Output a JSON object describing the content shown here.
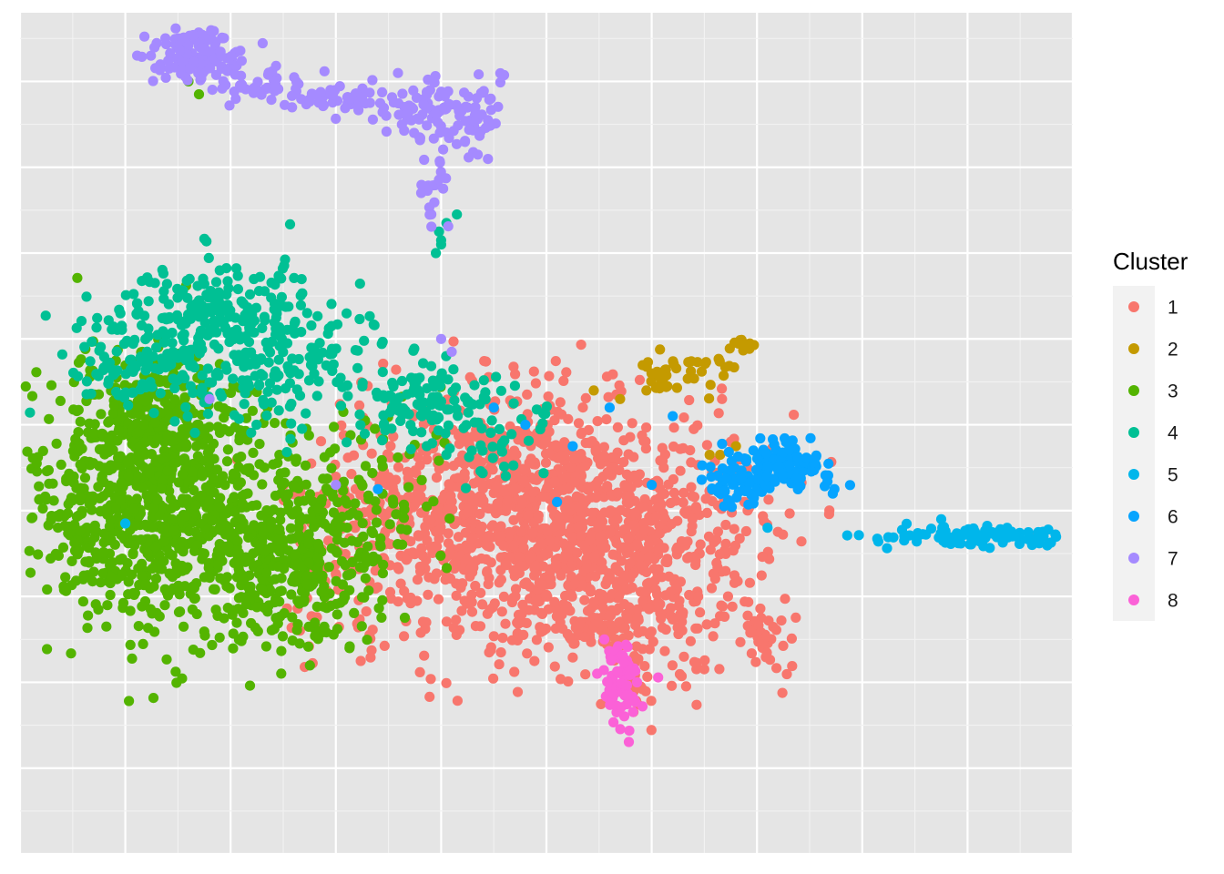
{
  "chart_data": {
    "type": "scatter",
    "title": "",
    "xlabel": "",
    "ylabel": "",
    "xlim": [
      -2,
      8
    ],
    "ylim": [
      -2,
      7.8
    ],
    "grid": true,
    "axis_tick_labels_shown": false,
    "legend": {
      "title": "Cluster",
      "placement": "right"
    },
    "colors": {
      "panel_background": "#e5e5e5",
      "grid_major": "#ffffff",
      "grid_minor": "#f2f2f2",
      "legend_key_background": "#f2f2f2"
    },
    "series": [
      {
        "name": "1",
        "color": "#f8766d",
        "clusters": [
          {
            "cx": 3.5,
            "cy": 1.6,
            "sx": 0.75,
            "sy": 0.75,
            "n": 900
          },
          {
            "cx": 2.1,
            "cy": 1.9,
            "sx": 0.65,
            "sy": 0.65,
            "n": 480
          },
          {
            "cx": 2.9,
            "cy": 2.5,
            "sx": 0.5,
            "sy": 0.45,
            "n": 160
          },
          {
            "cx": 1.1,
            "cy": 1.4,
            "sx": 0.4,
            "sy": 0.55,
            "n": 60
          },
          {
            "cx": 3.7,
            "cy": 0.45,
            "sx": 0.3,
            "sy": 0.4,
            "n": 60
          },
          {
            "cx": 5.05,
            "cy": 0.55,
            "sx": 0.12,
            "sy": 0.2,
            "n": 30
          }
        ],
        "points": [
          [
            7.4,
            1.75
          ],
          [
            7.6,
            1.7
          ],
          [
            4.75,
            2.8
          ],
          [
            4.4,
            2.95
          ]
        ]
      },
      {
        "name": "2",
        "color": "#c49a00",
        "clusters": [
          {
            "cx": 4.1,
            "cy": 3.6,
            "sx": 0.1,
            "sy": 0.1,
            "n": 28
          },
          {
            "cx": 4.55,
            "cy": 3.65,
            "sx": 0.18,
            "sy": 0.12,
            "n": 18
          },
          {
            "cx": 4.85,
            "cy": 3.95,
            "sx": 0.08,
            "sy": 0.06,
            "n": 12
          }
        ],
        "points": [
          [
            3.45,
            3.4
          ],
          [
            3.7,
            3.3
          ],
          [
            3.95,
            3.4
          ],
          [
            4.55,
            2.65
          ],
          [
            4.8,
            2.75
          ],
          [
            4.65,
            2.65
          ]
        ]
      },
      {
        "name": "3",
        "color": "#53b400",
        "clusters": [
          {
            "cx": -0.8,
            "cy": 2.1,
            "sx": 0.55,
            "sy": 0.75,
            "n": 800
          },
          {
            "cx": 0.5,
            "cy": 1.5,
            "sx": 0.5,
            "sy": 0.5,
            "n": 450
          },
          {
            "cx": -0.6,
            "cy": 3.2,
            "sx": 0.3,
            "sy": 0.35,
            "n": 130
          },
          {
            "cx": 1.5,
            "cy": 2.2,
            "sx": 0.35,
            "sy": 0.5,
            "n": 60
          }
        ],
        "points": [
          [
            -0.4,
            7.0
          ],
          [
            -0.3,
            6.85
          ]
        ]
      },
      {
        "name": "4",
        "color": "#00c094",
        "clusters": [
          {
            "cx": 0.0,
            "cy": 3.8,
            "sx": 0.75,
            "sy": 0.45,
            "n": 300
          },
          {
            "cx": -0.1,
            "cy": 4.4,
            "sx": 0.4,
            "sy": 0.3,
            "n": 110
          },
          {
            "cx": 1.9,
            "cy": 3.3,
            "sx": 0.4,
            "sy": 0.25,
            "n": 110
          },
          {
            "cx": -1.0,
            "cy": 3.8,
            "sx": 0.35,
            "sy": 0.3,
            "n": 40
          },
          {
            "cx": 2.5,
            "cy": 2.9,
            "sx": 0.3,
            "sy": 0.25,
            "n": 40
          }
        ],
        "points": [
          [
            2.0,
            5.1
          ],
          [
            1.95,
            5.0
          ],
          [
            1.98,
            5.25
          ],
          [
            2.05,
            5.35
          ],
          [
            2.15,
            5.45
          ],
          [
            2.0,
            5.15
          ]
        ]
      },
      {
        "name": "5",
        "color": "#00b6eb",
        "clusters": [
          {
            "cx": 7.1,
            "cy": 1.7,
            "sx": 0.45,
            "sy": 0.05,
            "n": 110
          }
        ],
        "points": [
          [
            6.75,
            1.9
          ],
          [
            -1.0,
            1.85
          ],
          [
            5.1,
            1.8
          ],
          [
            4.9,
            2.6
          ]
        ]
      },
      {
        "name": "6",
        "color": "#06a4ff",
        "clusters": [
          {
            "cx": 5.2,
            "cy": 2.5,
            "sx": 0.25,
            "sy": 0.15,
            "n": 130
          },
          {
            "cx": 4.8,
            "cy": 2.3,
            "sx": 0.18,
            "sy": 0.12,
            "n": 50
          }
        ],
        "points": [
          [
            3.6,
            3.2
          ],
          [
            3.25,
            2.75
          ],
          [
            4.2,
            3.1
          ],
          [
            2.5,
            3.2
          ],
          [
            1.4,
            2.25
          ],
          [
            3.1,
            2.1
          ],
          [
            4.0,
            2.3
          ],
          [
            2.8,
            3.0
          ]
        ]
      },
      {
        "name": "7",
        "color": "#a58aff",
        "clusters": [
          {
            "cx": -0.3,
            "cy": 7.3,
            "sx": 0.2,
            "sy": 0.15,
            "n": 120
          },
          {
            "cx": 0.3,
            "cy": 7.0,
            "sx": 0.25,
            "sy": 0.12,
            "n": 40
          },
          {
            "cx": 1.0,
            "cy": 6.8,
            "sx": 0.3,
            "sy": 0.08,
            "n": 40
          },
          {
            "cx": 1.8,
            "cy": 6.65,
            "sx": 0.25,
            "sy": 0.2,
            "n": 80
          },
          {
            "cx": 2.35,
            "cy": 6.55,
            "sx": 0.15,
            "sy": 0.25,
            "n": 40
          },
          {
            "cx": 1.9,
            "cy": 5.75,
            "sx": 0.08,
            "sy": 0.25,
            "n": 20
          }
        ],
        "points": [
          [
            2.0,
            4.0
          ],
          [
            2.1,
            3.85
          ],
          [
            -0.2,
            3.3
          ],
          [
            1.0,
            2.3
          ]
        ]
      },
      {
        "name": "8",
        "color": "#fb61d7",
        "clusters": [
          {
            "cx": 3.72,
            "cy": 0.0,
            "sx": 0.09,
            "sy": 0.22,
            "n": 65
          }
        ],
        "points": [
          [
            3.55,
            0.5
          ]
        ]
      }
    ]
  }
}
